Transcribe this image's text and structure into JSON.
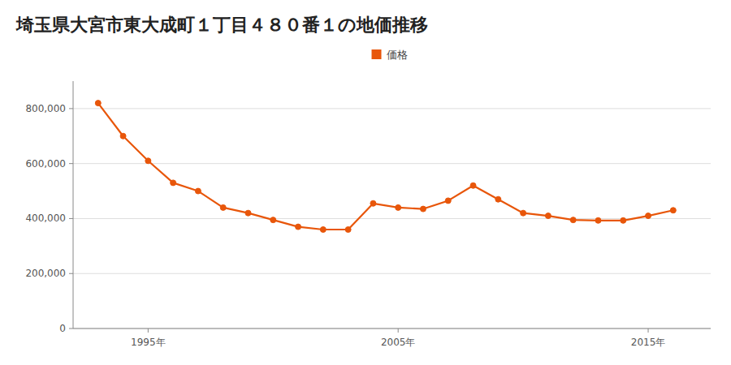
{
  "chart_data": {
    "type": "line",
    "title": "埼玉県大宮市東大成町１丁目４８０番１の地価推移",
    "x": [
      1993,
      1994,
      1995,
      1996,
      1997,
      1998,
      1999,
      2000,
      2001,
      2002,
      2003,
      2004,
      2005,
      2006,
      2007,
      2008,
      2009,
      2010,
      2011,
      2012,
      2013,
      2014,
      2015,
      2016
    ],
    "series": [
      {
        "name": "価格",
        "color": "#e8560a",
        "marker": "circle",
        "line_style": "solid",
        "values": [
          820000,
          700000,
          610000,
          530000,
          500000,
          440000,
          420000,
          395000,
          370000,
          360000,
          360000,
          455000,
          440000,
          435000,
          465000,
          520000,
          470000,
          420000,
          410000,
          395000,
          393000,
          393000,
          410000,
          430000
        ]
      }
    ],
    "xlim": [
      1992.0,
      2017.5
    ],
    "xticks": [
      {
        "value": 1995,
        "label": "1995年"
      },
      {
        "value": 2005,
        "label": "2005年"
      },
      {
        "value": 2015,
        "label": "2015年"
      }
    ],
    "ylim": [
      0,
      900000
    ],
    "yticks": [
      0,
      {
        "value": 200000,
        "label": "200,000"
      },
      {
        "value": 400000,
        "label": "400,000"
      },
      {
        "value": 600000,
        "label": "600,000"
      },
      {
        "value": 800000,
        "label": "800,000"
      }
    ],
    "grid": true,
    "legend": "top"
  }
}
